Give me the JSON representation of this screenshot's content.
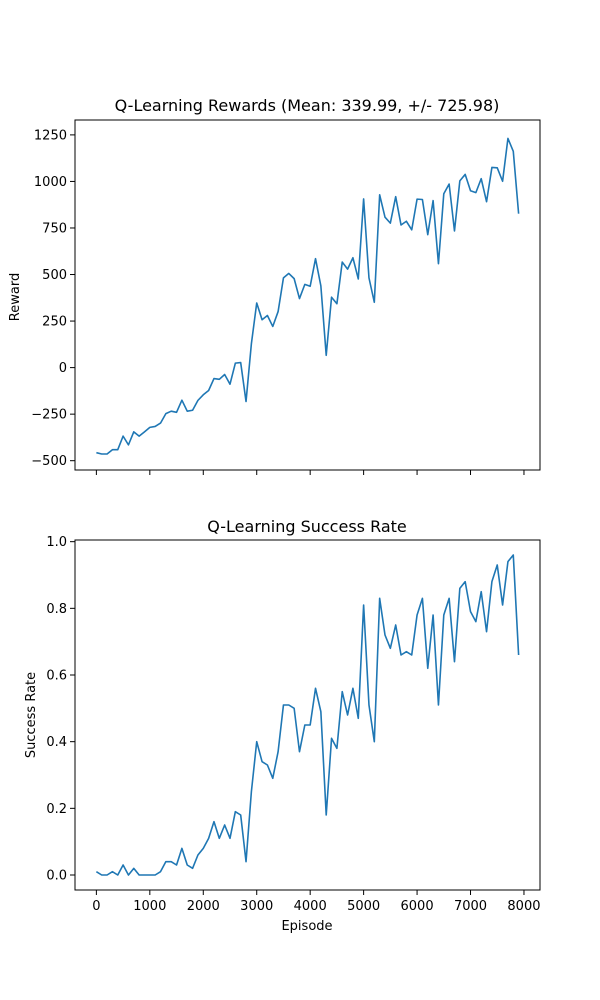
{
  "chart_data": [
    {
      "type": "line",
      "title": "Q-Learning Rewards (Mean: 339.99, +/- 725.98)",
      "xlabel": "",
      "ylabel": "Reward",
      "xlim": [
        -400,
        8300
      ],
      "ylim": [
        -550,
        1330
      ],
      "xticks": [
        0,
        1000,
        2000,
        3000,
        4000,
        5000,
        6000,
        7000,
        8000
      ],
      "show_xtick_labels": false,
      "yticks": [
        -500,
        -250,
        0,
        250,
        500,
        750,
        1000,
        1250
      ],
      "ytick_labels": [
        "−500",
        "−250",
        "0",
        "250",
        "500",
        "750",
        "1000",
        "1250"
      ],
      "color": "#1f77b4",
      "grid": false,
      "x": [
        0,
        100,
        200,
        300,
        400,
        500,
        600,
        700,
        800,
        900,
        1000,
        1100,
        1200,
        1300,
        1400,
        1500,
        1600,
        1700,
        1800,
        1900,
        2000,
        2100,
        2200,
        2300,
        2400,
        2500,
        2600,
        2700,
        2800,
        2900,
        3000,
        3100,
        3200,
        3300,
        3400,
        3500,
        3600,
        3700,
        3800,
        3900,
        4000,
        4100,
        4200,
        4300,
        4400,
        4500,
        4600,
        4700,
        4800,
        4900,
        5000,
        5100,
        5200,
        5300,
        5400,
        5500,
        5600,
        5700,
        5800,
        5900,
        6000,
        6100,
        6200,
        6300,
        6400,
        6500,
        6600,
        6700,
        6800,
        6900,
        7000,
        7100,
        7200,
        7300,
        7400,
        7500,
        7600,
        7700,
        7800,
        7900
      ],
      "values": [
        -457,
        -464,
        -464,
        -441,
        -441,
        -368,
        -415,
        -345,
        -368,
        -345,
        -321,
        -316,
        -298,
        -247,
        -234,
        -240,
        -175,
        -234,
        -229,
        -176,
        -146,
        -123,
        -59,
        -63,
        -37,
        -89,
        24,
        27,
        -182,
        128,
        347,
        257,
        280,
        221,
        301,
        482,
        506,
        478,
        371,
        447,
        437,
        585,
        439,
        66,
        378,
        343,
        567,
        529,
        590,
        476,
        906,
        482,
        351,
        928,
        808,
        776,
        918,
        766,
        786,
        740,
        905,
        903,
        714,
        897,
        558,
        934,
        986,
        734,
        1003,
        1038,
        950,
        940,
        1015,
        891,
        1075,
        1073,
        1001,
        1231,
        1162,
        827
      ]
    },
    {
      "type": "line",
      "title": "Q-Learning Success Rate",
      "xlabel": "Episode",
      "ylabel": "Success Rate",
      "xlim": [
        -400,
        8300
      ],
      "ylim": [
        -0.045,
        1.005
      ],
      "xticks": [
        0,
        1000,
        2000,
        3000,
        4000,
        5000,
        6000,
        7000,
        8000
      ],
      "xtick_labels": [
        "0",
        "1000",
        "2000",
        "3000",
        "4000",
        "5000",
        "6000",
        "7000",
        "8000"
      ],
      "show_xtick_labels": true,
      "yticks": [
        0.0,
        0.2,
        0.4,
        0.6,
        0.8,
        1.0
      ],
      "ytick_labels": [
        "0.0",
        "0.2",
        "0.4",
        "0.6",
        "0.8",
        "1.0"
      ],
      "color": "#1f77b4",
      "grid": false,
      "x": [
        0,
        100,
        200,
        300,
        400,
        500,
        600,
        700,
        800,
        900,
        1000,
        1100,
        1200,
        1300,
        1400,
        1500,
        1600,
        1700,
        1800,
        1900,
        2000,
        2100,
        2200,
        2300,
        2400,
        2500,
        2600,
        2700,
        2800,
        2900,
        3000,
        3100,
        3200,
        3300,
        3400,
        3500,
        3600,
        3700,
        3800,
        3900,
        4000,
        4100,
        4200,
        4300,
        4400,
        4500,
        4600,
        4700,
        4800,
        4900,
        5000,
        5100,
        5200,
        5300,
        5400,
        5500,
        5600,
        5700,
        5800,
        5900,
        6000,
        6100,
        6200,
        6300,
        6400,
        6500,
        6600,
        6700,
        6800,
        6900,
        7000,
        7100,
        7200,
        7300,
        7400,
        7500,
        7600,
        7700,
        7800,
        7900
      ],
      "values": [
        0.01,
        0.0,
        0.0,
        0.01,
        0.0,
        0.03,
        0.0,
        0.02,
        0.0,
        0.0,
        0.0,
        0.0,
        0.01,
        0.04,
        0.04,
        0.03,
        0.08,
        0.03,
        0.02,
        0.06,
        0.08,
        0.11,
        0.16,
        0.11,
        0.15,
        0.11,
        0.19,
        0.18,
        0.04,
        0.25,
        0.4,
        0.34,
        0.33,
        0.29,
        0.37,
        0.51,
        0.51,
        0.5,
        0.37,
        0.45,
        0.45,
        0.56,
        0.49,
        0.18,
        0.41,
        0.38,
        0.55,
        0.48,
        0.56,
        0.47,
        0.81,
        0.51,
        0.4,
        0.83,
        0.72,
        0.68,
        0.75,
        0.66,
        0.67,
        0.66,
        0.78,
        0.83,
        0.62,
        0.78,
        0.51,
        0.78,
        0.83,
        0.64,
        0.86,
        0.88,
        0.79,
        0.76,
        0.85,
        0.73,
        0.88,
        0.93,
        0.81,
        0.94,
        0.96,
        0.66
      ]
    }
  ]
}
